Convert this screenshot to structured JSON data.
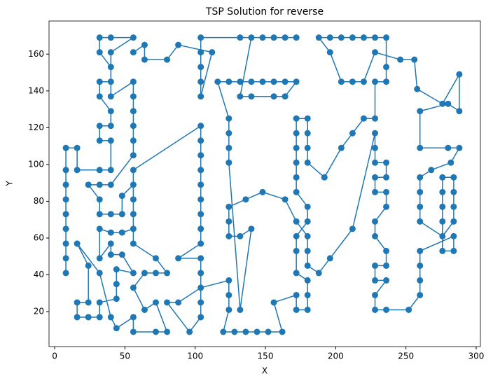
{
  "chart_data": {
    "type": "line",
    "title": "TSP Solution for reverse",
    "x_label": "X",
    "y_label": "Y",
    "xlim": [
      -4,
      303
    ],
    "ylim": [
      1,
      178
    ],
    "xticks": [
      0,
      50,
      100,
      150,
      200,
      250,
      300
    ],
    "yticks": [
      20,
      40,
      60,
      80,
      100,
      120,
      140,
      160
    ],
    "x": [
      8,
      8,
      8,
      8,
      8,
      8,
      8,
      8,
      8,
      16,
      16,
      32,
      40,
      40,
      32,
      32,
      40,
      40,
      32,
      32,
      40,
      40,
      32,
      32,
      40,
      56,
      40,
      40,
      56,
      56,
      56,
      56,
      56,
      56,
      40,
      32,
      24,
      32,
      32,
      40,
      48,
      48,
      56,
      56,
      56,
      56,
      48,
      40,
      32,
      32,
      40,
      40,
      48,
      56,
      44,
      44,
      44,
      32,
      32,
      24,
      16,
      16,
      24,
      24,
      16,
      32,
      40,
      44,
      56,
      56,
      72,
      80,
      72,
      64,
      56,
      64,
      72,
      80,
      72,
      56,
      56,
      104,
      104,
      104,
      104,
      104,
      104,
      104,
      104,
      104,
      88,
      104,
      104,
      104,
      104,
      96,
      80,
      88,
      104,
      124,
      124,
      124,
      120,
      128,
      136,
      144,
      152,
      162,
      156,
      172,
      172,
      180,
      180,
      180,
      172,
      172,
      172,
      180,
      180,
      172,
      172,
      172,
      172,
      172,
      172,
      180,
      180,
      180,
      180,
      192,
      204,
      212,
      220,
      228,
      228,
      236,
      236,
      236,
      228,
      220,
      212,
      204,
      196,
      188,
      196,
      204,
      212,
      220,
      228,
      246,
      256,
      258,
      276,
      288,
      288,
      280,
      260,
      260,
      280,
      288,
      282,
      268,
      260,
      260,
      260,
      260,
      276,
      284,
      284,
      284,
      284,
      276,
      276,
      276,
      276,
      276,
      284,
      284,
      260,
      260,
      260,
      260,
      252,
      236,
      228,
      228,
      236,
      228,
      228,
      236,
      236,
      228,
      228,
      236,
      236,
      228,
      228,
      236,
      236,
      228,
      228,
      228,
      212,
      196,
      188,
      180,
      180,
      180,
      172,
      164,
      148,
      136,
      124,
      124,
      124,
      132,
      140,
      132,
      124,
      124,
      124,
      124,
      116,
      124,
      132,
      140,
      148,
      156,
      164,
      172,
      164,
      156,
      140,
      132,
      140,
      132,
      148,
      156,
      164,
      172,
      104,
      104,
      104,
      104,
      104,
      112,
      88,
      80,
      64,
      64,
      56
    ],
    "series": [
      {
        "color": "#1f77b4",
        "values": [
          41,
          49,
          57,
          65,
          73,
          81,
          89,
          97,
          109,
          109,
          97,
          97,
          97,
          113,
          113,
          121,
          121,
          129,
          137,
          145,
          145,
          153,
          161,
          169,
          169,
          169,
          161,
          137,
          145,
          137,
          129,
          121,
          113,
          105,
          89,
          89,
          89,
          81,
          73,
          73,
          73,
          83,
          89,
          81,
          73,
          65,
          63,
          63,
          65,
          49,
          57,
          51,
          51,
          41,
          43,
          35,
          27,
          25,
          17,
          17,
          17,
          25,
          25,
          45,
          57,
          41,
          17,
          11,
          17,
          9,
          9,
          9,
          25,
          21,
          33,
          41,
          41,
          41,
          49,
          57,
          97,
          121,
          113,
          105,
          97,
          89,
          81,
          73,
          65,
          57,
          49,
          49,
          41,
          25,
          17,
          9,
          25,
          25,
          33,
          37,
          29,
          21,
          9,
          9,
          9,
          9,
          9,
          9,
          25,
          29,
          21,
          21,
          29,
          37,
          41,
          53,
          61,
          69,
          77,
          85,
          93,
          101,
          109,
          117,
          125,
          125,
          117,
          109,
          101,
          93,
          109,
          117,
          125,
          125,
          145,
          145,
          153,
          169,
          169,
          169,
          169,
          169,
          169,
          169,
          161,
          145,
          145,
          145,
          161,
          157,
          157,
          141,
          133,
          149,
          129,
          133,
          129,
          109,
          109,
          109,
          101,
          97,
          93,
          85,
          77,
          69,
          61,
          69,
          77,
          85,
          93,
          93,
          85,
          77,
          69,
          53,
          53,
          61,
          53,
          45,
          37,
          29,
          21,
          21,
          21,
          29,
          37,
          37,
          45,
          45,
          53,
          61,
          69,
          77,
          85,
          85,
          93,
          93,
          101,
          101,
          109,
          117,
          65,
          49,
          41,
          45,
          53,
          61,
          69,
          81,
          85,
          81,
          77,
          69,
          61,
          61,
          65,
          21,
          101,
          109,
          117,
          125,
          145,
          145,
          145,
          145,
          145,
          145,
          145,
          145,
          137,
          137,
          137,
          137,
          169,
          169,
          169,
          169,
          169,
          169,
          169,
          161,
          153,
          145,
          137,
          161,
          165,
          157,
          157,
          165,
          161
        ]
      }
    ]
  }
}
